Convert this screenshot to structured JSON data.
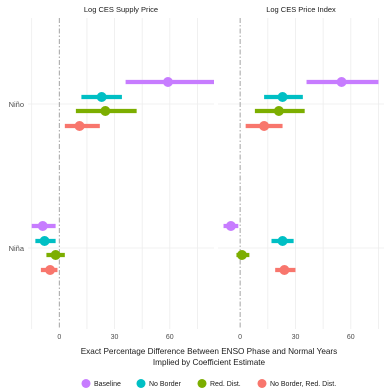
{
  "chart_data": {
    "type": "scatter",
    "subtype": "coefficient-plot-faceted",
    "xlabel_line1": "Exact Percentage Difference Between ENSO Phase and Normal Years",
    "xlabel_line2": "Implied by Coefficient Estimate",
    "ylabel": "",
    "categories": [
      "Niño",
      "Niña"
    ],
    "x_ticks": [
      0,
      30,
      60
    ],
    "grid": true,
    "zero_line": "dashed vertical at x = 0",
    "legend_position": "bottom",
    "series": [
      {
        "name": "Baseline",
        "color": "#C77CFF"
      },
      {
        "name": "No Border",
        "color": "#00BFC4"
      },
      {
        "name": "Red. Dist.",
        "color": "#7CAE00"
      },
      {
        "name": "No Border, Red. Dist.",
        "color": "#F8766D"
      }
    ],
    "facets": [
      {
        "title": "Log CES Supply Price",
        "xlim": [
          -17,
          84
        ],
        "points": [
          {
            "category": "Niño",
            "series": "Baseline",
            "estimate": 59,
            "ci": [
              36,
              84
            ]
          },
          {
            "category": "Niño",
            "series": "No Border",
            "estimate": 23,
            "ci": [
              12,
              34
            ]
          },
          {
            "category": "Niño",
            "series": "Red. Dist.",
            "estimate": 25,
            "ci": [
              9,
              42
            ]
          },
          {
            "category": "Niño",
            "series": "No Border, Red. Dist.",
            "estimate": 11,
            "ci": [
              3,
              22
            ]
          },
          {
            "category": "Niña",
            "series": "Baseline",
            "estimate": -9,
            "ci": [
              -15,
              -2
            ]
          },
          {
            "category": "Niña",
            "series": "No Border",
            "estimate": -8,
            "ci": [
              -13,
              -2
            ]
          },
          {
            "category": "Niña",
            "series": "Red. Dist.",
            "estimate": -2,
            "ci": [
              -7,
              3
            ]
          },
          {
            "category": "Niña",
            "series": "No Border, Red. Dist.",
            "estimate": -5,
            "ci": [
              -10,
              -1
            ]
          }
        ]
      },
      {
        "title": "Log CES Price Index",
        "xlim": [
          -12,
          78
        ],
        "points": [
          {
            "category": "Niño",
            "series": "Baseline",
            "estimate": 55,
            "ci": [
              36,
              75
            ]
          },
          {
            "category": "Niño",
            "series": "No Border",
            "estimate": 23,
            "ci": [
              13,
              34
            ]
          },
          {
            "category": "Niño",
            "series": "Red. Dist.",
            "estimate": 21,
            "ci": [
              8,
              35
            ]
          },
          {
            "category": "Niño",
            "series": "No Border, Red. Dist.",
            "estimate": 13,
            "ci": [
              3,
              23
            ]
          },
          {
            "category": "Niña",
            "series": "Baseline",
            "estimate": -5,
            "ci": [
              -9,
              -1
            ]
          },
          {
            "category": "Niña",
            "series": "No Border",
            "estimate": 23,
            "ci": [
              17,
              29
            ]
          },
          {
            "category": "Niña",
            "series": "Red. Dist.",
            "estimate": 1,
            "ci": [
              -2,
              5
            ]
          },
          {
            "category": "Niña",
            "series": "No Border, Red. Dist.",
            "estimate": 24,
            "ci": [
              19,
              30
            ]
          }
        ]
      }
    ]
  }
}
